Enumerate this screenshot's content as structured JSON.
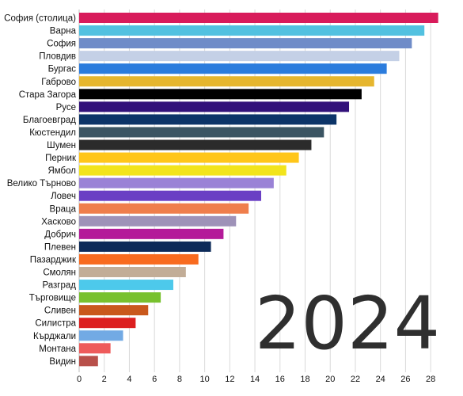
{
  "chart_data": {
    "type": "bar",
    "orientation": "horizontal",
    "annotation": "2024",
    "categories": [
      "София (столица)",
      "Варна",
      "София",
      "Пловдив",
      "Бургас",
      "Габрово",
      "Стара Загора",
      "Русе",
      "Благоевград",
      "Кюстендил",
      "Шумен",
      "Перник",
      "Ямбол",
      "Велико Търново",
      "Ловеч",
      "Враца",
      "Хасково",
      "Добрич",
      "Плевен",
      "Пазарджик",
      "Смолян",
      "Разград",
      "Търговище",
      "Сливен",
      "Силистра",
      "Кърджали",
      "Монтана",
      "Видин"
    ],
    "values": [
      28.6,
      27.5,
      26.5,
      25.5,
      24.5,
      23.5,
      22.5,
      21.5,
      20.5,
      19.5,
      18.5,
      17.5,
      16.5,
      15.5,
      14.5,
      13.5,
      12.5,
      11.5,
      10.5,
      9.5,
      8.5,
      7.5,
      6.5,
      5.5,
      4.5,
      3.5,
      2.5,
      1.5
    ],
    "colors": [
      "#D81B5B",
      "#52C1E0",
      "#6F8CC8",
      "#C4D0E6",
      "#2B7CDD",
      "#E6B62E",
      "#000000",
      "#32117A",
      "#0C3468",
      "#3B5563",
      "#2B2B2B",
      "#FFC61A",
      "#F2E41C",
      "#9A82D6",
      "#6A3FC4",
      "#EF7E4C",
      "#9E92B8",
      "#B41A99",
      "#0C2A58",
      "#F86B1F",
      "#C2AD97",
      "#4DC9EB",
      "#78C12E",
      "#C9581C",
      "#DC1F1F",
      "#72AAE4",
      "#EE5B5B",
      "#B8504A"
    ],
    "xlim": [
      0,
      29
    ],
    "xticks": [
      0,
      2,
      4,
      6,
      8,
      10,
      12,
      14,
      16,
      18,
      20,
      22,
      24,
      26,
      28
    ],
    "grid": true
  }
}
